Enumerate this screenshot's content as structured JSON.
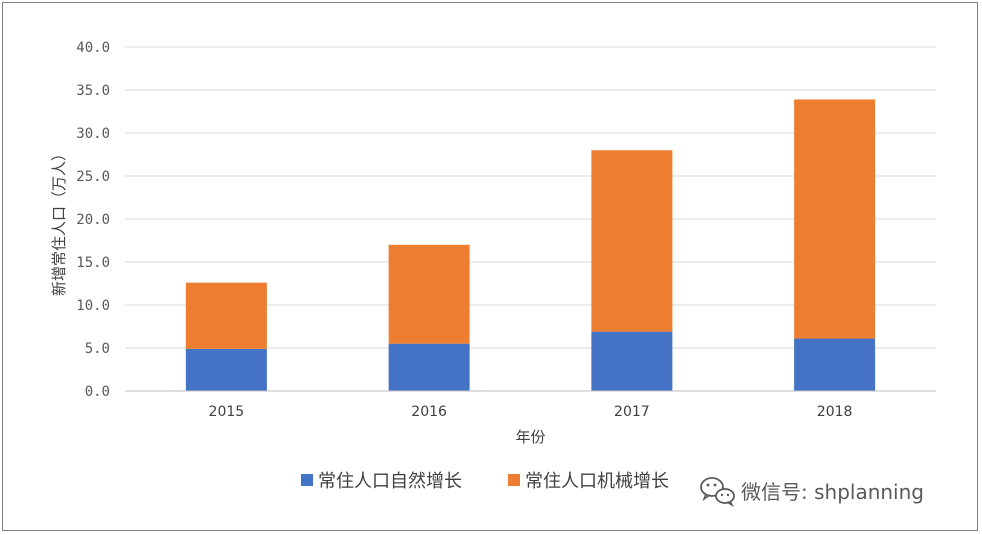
{
  "chart_data": {
    "type": "bar",
    "stacked": true,
    "categories": [
      "2015",
      "2016",
      "2017",
      "2018"
    ],
    "series": [
      {
        "name": "常住人口自然增长",
        "values": [
          4.9,
          5.5,
          6.9,
          6.1
        ],
        "color": "#4472c4"
      },
      {
        "name": "常住人口机械增长",
        "values": [
          7.7,
          11.5,
          21.1,
          27.8
        ],
        "color": "#ed7d31"
      }
    ],
    "xlabel": "年份",
    "ylabel": "新增常住人口（万人）",
    "ylim": [
      0,
      40
    ],
    "yticks": [
      "0.0",
      "5.0",
      "10.0",
      "15.0",
      "20.0",
      "25.0",
      "30.0",
      "35.0",
      "40.0"
    ],
    "grid": true,
    "legend": "bottom"
  },
  "watermark": {
    "text": "微信号: shplanning",
    "icon": "wechat-icon"
  }
}
